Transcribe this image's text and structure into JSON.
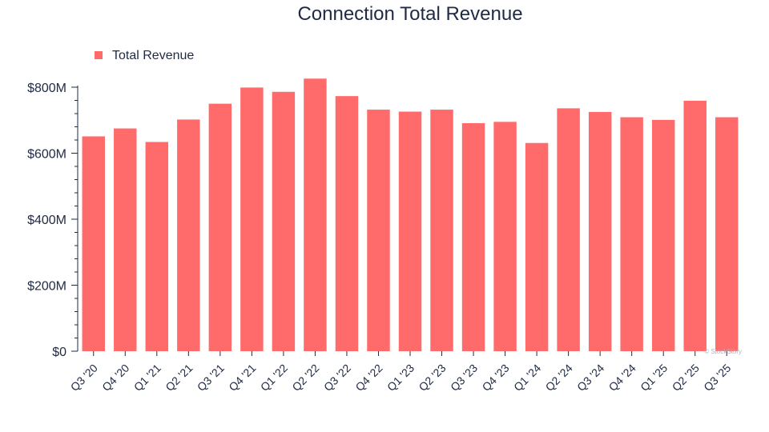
{
  "chart_data": {
    "type": "bar",
    "title": "Connection Total Revenue",
    "legend": {
      "label": "Total Revenue",
      "position": "top-left"
    },
    "categories": [
      "Q3 '20",
      "Q4 '20",
      "Q1 '21",
      "Q2 '21",
      "Q3 '21",
      "Q4 '21",
      "Q1 '22",
      "Q2 '22",
      "Q3 '22",
      "Q4 '22",
      "Q1 '23",
      "Q2 '23",
      "Q3 '23",
      "Q4 '23",
      "Q1 '24",
      "Q2 '24",
      "Q3 '24",
      "Q4 '24",
      "Q1 '25",
      "Q2 '25",
      "Q3 '25"
    ],
    "series": [
      {
        "name": "Total Revenue",
        "color": "#ff6b6b",
        "values": [
          651,
          675,
          634,
          702,
          750,
          799,
          786,
          826,
          773,
          732,
          726,
          732,
          691,
          695,
          631,
          736,
          725,
          709,
          701,
          759,
          709
        ]
      }
    ],
    "yticks": [
      {
        "value": 0,
        "label": "$0"
      },
      {
        "value": 200,
        "label": "$200M"
      },
      {
        "value": 400,
        "label": "$400M"
      },
      {
        "value": 600,
        "label": "$600M"
      },
      {
        "value": 800,
        "label": "$800M"
      }
    ],
    "ylim": [
      0,
      800
    ],
    "unit": "M",
    "grid": false,
    "watermark": "© StockStory"
  }
}
